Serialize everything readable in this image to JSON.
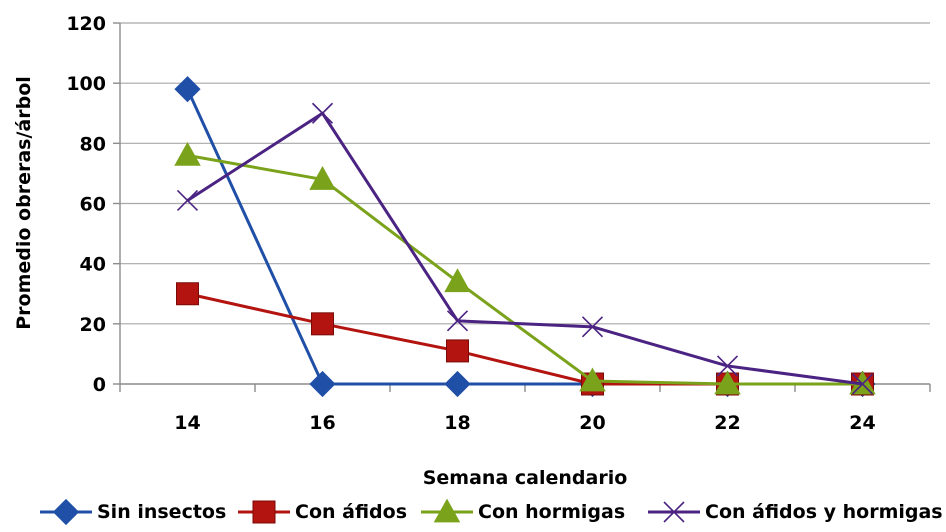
{
  "chart_data": {
    "type": "line",
    "title": "",
    "xlabel": "Semana calendario",
    "ylabel": "Promedio obreras/árbol",
    "x": [
      14,
      16,
      18,
      20,
      22,
      24
    ],
    "xlim": [
      13,
      25
    ],
    "ylim": [
      0,
      120
    ],
    "yticks": [
      0,
      20,
      40,
      60,
      80,
      100,
      120
    ],
    "grid": true,
    "legend_position": "bottom",
    "series": [
      {
        "name": "Sin insectos",
        "color": "#1f4fa6",
        "marker": "diamond",
        "values": [
          98,
          0,
          0,
          0,
          0,
          0
        ]
      },
      {
        "name": "Con áfidos",
        "color": "#b3140f",
        "marker": "square",
        "values": [
          30,
          20,
          11,
          0,
          0,
          0
        ]
      },
      {
        "name": "Con hormigas",
        "color": "#7aa21b",
        "marker": "triangle",
        "values": [
          76,
          68,
          34,
          1,
          0,
          0
        ]
      },
      {
        "name": "Con áfidos y hormigas",
        "color": "#4b2382",
        "marker": "x",
        "values": [
          61,
          90,
          21,
          19,
          6,
          0
        ]
      }
    ]
  }
}
